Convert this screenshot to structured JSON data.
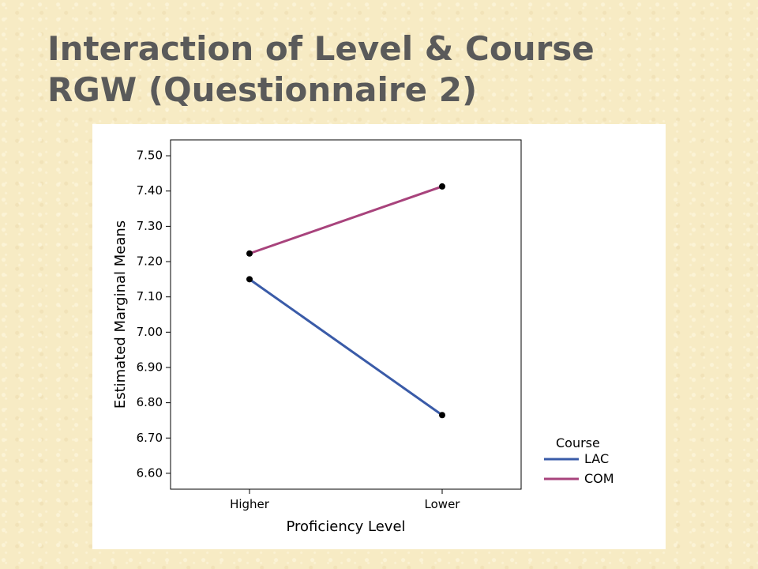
{
  "slide": {
    "title_line1": "Interaction of Level & Course",
    "title_line2": "RGW (Questionnaire 2)"
  },
  "chart_data": {
    "type": "line",
    "categories": [
      "Higher",
      "Lower"
    ],
    "series": [
      {
        "name": "LAC",
        "values": [
          7.15,
          6.765
        ],
        "color": "#3a5ba8"
      },
      {
        "name": "COM",
        "values": [
          7.223,
          7.413
        ],
        "color": "#a8437c"
      }
    ],
    "xlabel": "Proficiency Level",
    "ylabel": "Estimated Marginal Means",
    "ylim": [
      6.555,
      7.545
    ],
    "yticks": [
      "7.50",
      "7.40",
      "7.30",
      "7.20",
      "7.10",
      "7.00",
      "6.90",
      "6.80",
      "6.70",
      "6.60"
    ],
    "legend_title": "Course",
    "legend_position": "bottom-right",
    "grid": false
  }
}
